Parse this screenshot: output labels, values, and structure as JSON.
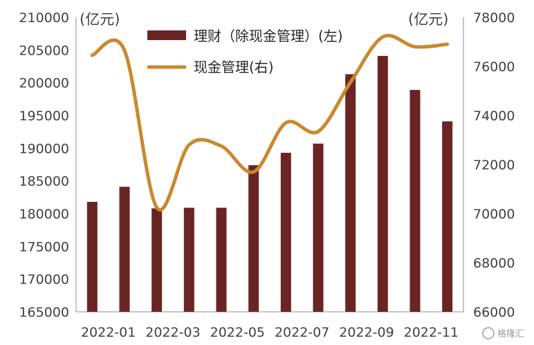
{
  "chart_data": {
    "type": "bar+line",
    "categories": [
      "2022-01",
      "2022-02",
      "2022-03",
      "2022-04",
      "2022-05",
      "2022-06",
      "2022-07",
      "2022-08",
      "2022-09",
      "2022-10",
      "2022-11",
      "2022-12"
    ],
    "x_tick_labels": [
      "2022-01",
      "2022-03",
      "2022-05",
      "2022-07",
      "2022-09",
      "2022-11"
    ],
    "y_left": {
      "unit": "(亿元)",
      "min": 165000,
      "max": 210000,
      "step": 5000
    },
    "y_right": {
      "unit": "(亿元)",
      "min": 66000,
      "max": 78000,
      "step": 2000
    },
    "series": [
      {
        "name": "理财（除现金管理）(左)",
        "axis": "left",
        "kind": "bar",
        "color": "#6b2424",
        "values": [
          181800,
          184100,
          180800,
          180900,
          180900,
          187400,
          189300,
          190700,
          201300,
          204100,
          198900,
          194100
        ]
      },
      {
        "name": "现金管理(右)",
        "axis": "right",
        "kind": "line",
        "color": "#c8892f",
        "values": [
          76450,
          76650,
          70250,
          72800,
          72750,
          71700,
          73700,
          73350,
          75350,
          77200,
          76800,
          76900
        ]
      }
    ],
    "grid": false,
    "legend_position": "top-center"
  },
  "watermark": "格隆汇"
}
